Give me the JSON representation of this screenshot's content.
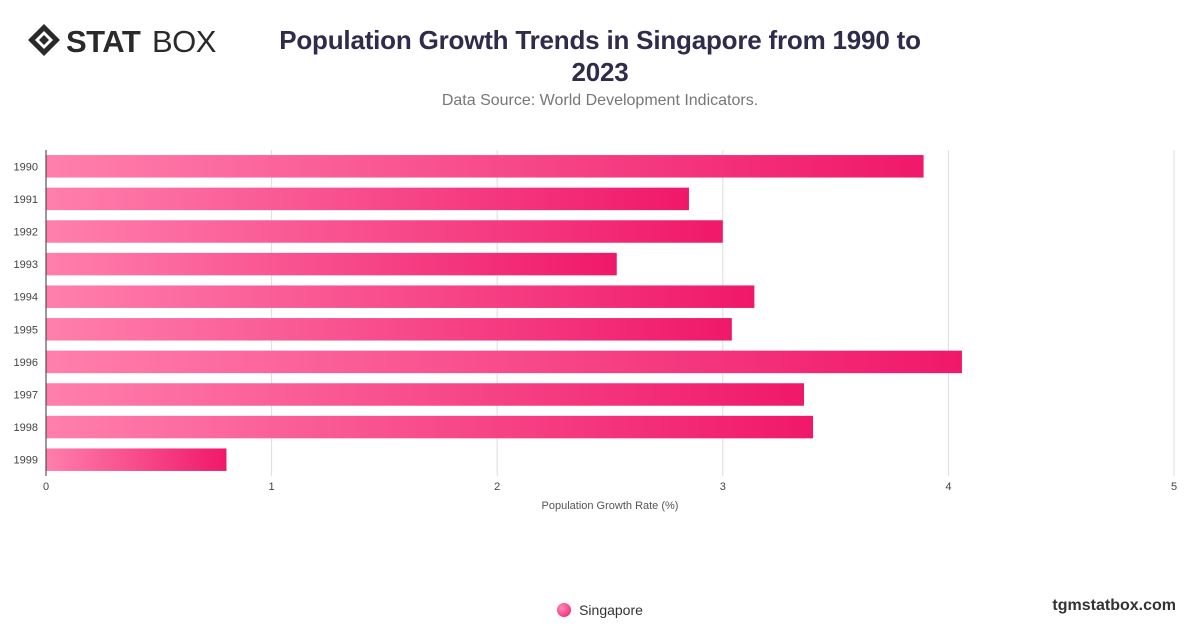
{
  "brand": {
    "logo_text": "STATBOX",
    "footer": "tgmstatbox.com"
  },
  "header": {
    "title": "Population Growth Trends in Singapore from 1990 to 2023",
    "subtitle": "Data Source: World Development Indicators."
  },
  "colors": {
    "bar_start": "#ff7fac",
    "bar_end": "#f0186a",
    "title": "#2f2b4a",
    "grid": "#dddddd"
  },
  "chart_data": {
    "type": "bar",
    "orientation": "horizontal",
    "categories": [
      "1990",
      "1991",
      "1992",
      "1993",
      "1994",
      "1995",
      "1996",
      "1997",
      "1998",
      "1999"
    ],
    "series": [
      {
        "name": "Singapore",
        "values": [
          3.89,
          2.85,
          3.0,
          2.53,
          3.14,
          3.04,
          4.06,
          3.36,
          3.4,
          0.8
        ]
      }
    ],
    "xlabel": "Population Growth Rate (%)",
    "ylabel": "",
    "xlim": [
      0,
      5
    ],
    "xticks": [
      "0",
      "1",
      "2",
      "3",
      "4",
      "5"
    ],
    "grid": true,
    "legend": "bottom-center"
  }
}
